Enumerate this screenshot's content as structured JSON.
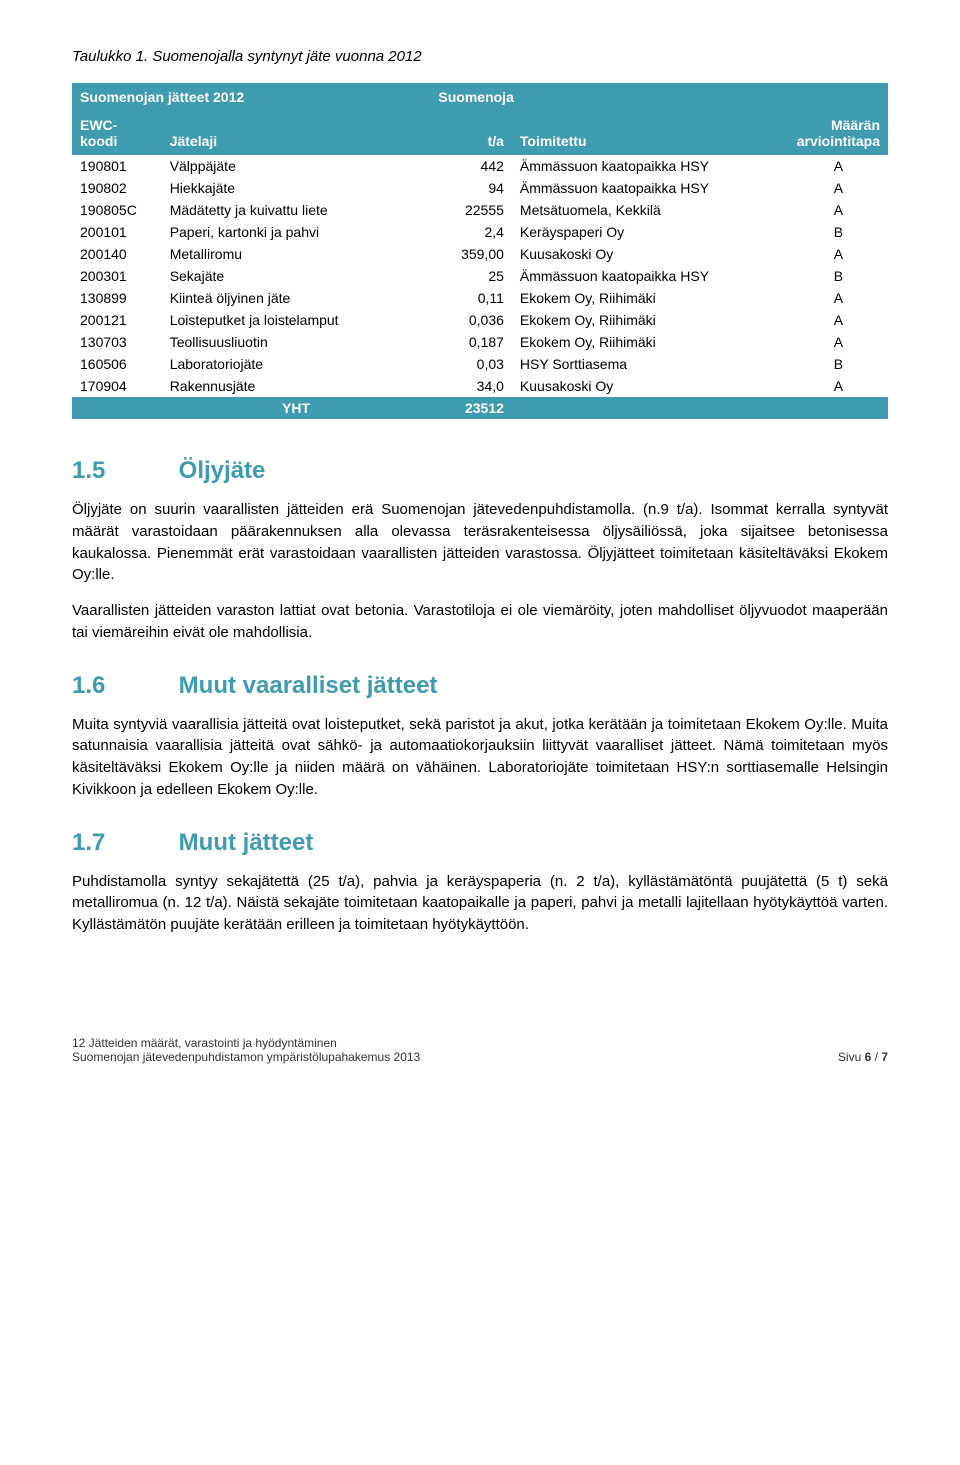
{
  "colors": {
    "header_bg": "#3e9bb0",
    "accent": "#3e9bb0",
    "text": "#000000",
    "bg": "#ffffff"
  },
  "caption": "Taulukko 1. Suomenojalla syntynyt jäte vuonna 2012",
  "table": {
    "title_left": "Suomenojan jätteet 2012",
    "title_right": "Suomenoja",
    "headers": {
      "ewc": "EWC-koodi",
      "jatelaji": "Jätelaji",
      "ta": "t/a",
      "toimitettu": "Toimitettu",
      "arviointi": "Määrän arviointitapa"
    },
    "rows": [
      {
        "ewc": "190801",
        "jate": "Välppäjäte",
        "ta": "442",
        "toim": "Ämmässuon kaatopaikka HSY",
        "arv": "A"
      },
      {
        "ewc": "190802",
        "jate": "Hiekkajäte",
        "ta": "94",
        "toim": "Ämmässuon kaatopaikka HSY",
        "arv": "A"
      },
      {
        "ewc": "190805C",
        "jate": "Mädätetty ja kuivattu liete",
        "ta": "22555",
        "toim": "Metsätuomela, Kekkilä",
        "arv": "A"
      },
      {
        "ewc": "200101",
        "jate": "Paperi, kartonki ja pahvi",
        "ta": "2,4",
        "toim": "Keräyspaperi Oy",
        "arv": "B"
      },
      {
        "ewc": "200140",
        "jate": "Metalliromu",
        "ta": "359,00",
        "toim": "Kuusakoski Oy",
        "arv": "A"
      },
      {
        "ewc": "200301",
        "jate": "Sekajäte",
        "ta": "25",
        "toim": "Ämmässuon kaatopaikka HSY",
        "arv": "B"
      },
      {
        "ewc": "130899",
        "jate": "Kiinteä öljyinen jäte",
        "ta": "0,11",
        "toim": "Ekokem Oy, Riihimäki",
        "arv": "A"
      },
      {
        "ewc": "200121",
        "jate": "Loisteputket ja loistelamput",
        "ta": "0,036",
        "toim": "Ekokem Oy, Riihimäki",
        "arv": "A"
      },
      {
        "ewc": "130703",
        "jate": "Teollisuusliuotin",
        "ta": "0,187",
        "toim": "Ekokem Oy, Riihimäki",
        "arv": "A"
      },
      {
        "ewc": "160506",
        "jate": "Laboratoriojäte",
        "ta": "0,03",
        "toim": "HSY Sorttiasema",
        "arv": "B"
      },
      {
        "ewc": "170904",
        "jate": "Rakennusjäte",
        "ta": "34,0",
        "toim": "Kuusakoski Oy",
        "arv": "A"
      }
    ],
    "total_label": "YHT",
    "total_value": "23512"
  },
  "sections": {
    "s15": {
      "num": "1.5",
      "title": "Öljyjäte",
      "p1": "Öljyjäte on suurin vaarallisten jätteiden erä Suomenojan jätevedenpuhdistamolla. (n.9 t/a). Isommat kerralla syntyvät määrät varastoidaan päärakennuksen alla olevassa teräsrakenteisessa öljysäiliössä, joka sijaitsee betonisessa kaukalossa. Pienemmät erät varastoidaan vaarallisten jätteiden varastossa. Öljyjätteet toimitetaan käsiteltäväksi Ekokem Oy:lle.",
      "p2": "Vaarallisten jätteiden varaston lattiat ovat betonia. Varastotiloja ei ole viemäröity, joten mahdolliset öljyvuodot maaperään tai viemäreihin eivät ole mahdollisia."
    },
    "s16": {
      "num": "1.6",
      "title": "Muut vaaralliset jätteet",
      "p1": "Muita syntyviä vaarallisia jätteitä ovat loisteputket, sekä paristot ja akut, jotka kerätään ja toimitetaan Ekokem Oy:lle. Muita satunnaisia vaarallisia jätteitä ovat sähkö- ja automaatiokorjauksiin liittyvät vaaralliset jätteet. Nämä toimitetaan myös käsiteltäväksi Ekokem Oy:lle ja niiden määrä on vähäinen. Laboratoriojäte toimitetaan HSY:n sorttiasemalle Helsingin Kivikkoon ja edelleen Ekokem Oy:lle."
    },
    "s17": {
      "num": "1.7",
      "title": "Muut jätteet",
      "p1": "Puhdistamolla syntyy sekajätettä (25 t/a), pahvia ja keräyspaperia (n. 2 t/a), kyllästämätöntä puujätettä (5 t) sekä metalliromua (n. 12 t/a). Näistä sekajäte toimitetaan kaatopaikalle ja paperi, pahvi ja metalli lajitellaan hyötykäyttöä varten. Kyllästämätön puujäte kerätään erilleen ja toimitetaan hyötykäyttöön."
    }
  },
  "footer": {
    "line1": "12 Jätteiden määrät, varastointi ja hyödyntäminen",
    "line2": "Suomenojan jätevedenpuhdistamon ympäristölupahakemus 2013",
    "page_label": "Sivu",
    "page_cur": "6",
    "page_sep": "/",
    "page_tot": "7"
  }
}
